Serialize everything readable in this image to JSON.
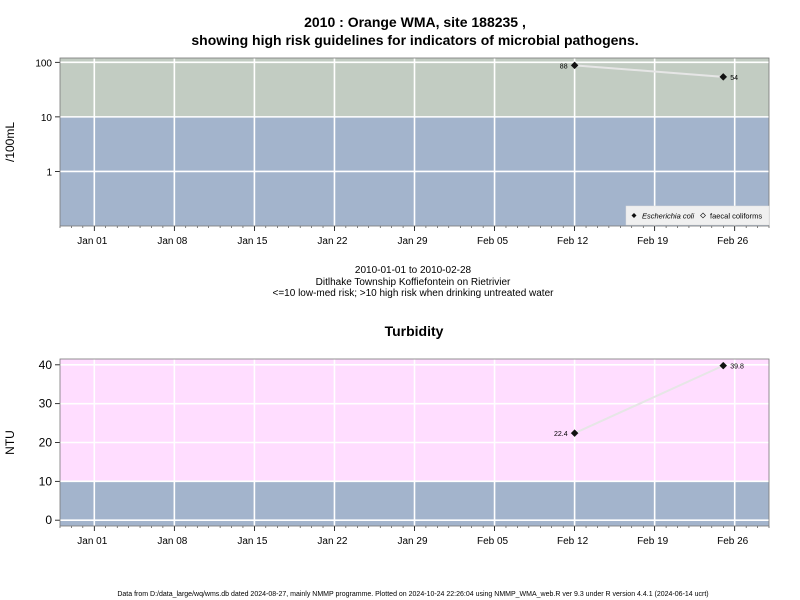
{
  "chart_data": [
    {
      "type": "line",
      "title_line1": "2010 : Orange WMA, site 188235 ,",
      "title_line2": "showing high risk guidelines for indicators of microbial pathogens.",
      "ylabel": "/100mL",
      "y_scale": "log",
      "ylim": [
        0.1,
        120
      ],
      "y_ticks": [
        "100",
        "10",
        "1"
      ],
      "x_ticks": [
        "Jan 01",
        "Jan 08",
        "Jan 15",
        "Jan 22",
        "Jan 29",
        "Feb 05",
        "Feb 12",
        "Feb 19",
        "Feb 26"
      ],
      "xlim": [
        "2009-12-29",
        "2010-03-01"
      ],
      "bands": [
        {
          "from": 0.1,
          "to": 10,
          "color": "#a3b4cc"
        },
        {
          "from": 10,
          "to": 120,
          "color": "#c2ccc2"
        }
      ],
      "series": [
        {
          "name": "Escherichia coli",
          "marker": "filled-diamond",
          "points": [
            {
              "x": "2010-02-12",
              "y": 88,
              "label": "88"
            },
            {
              "x": "2010-02-25",
              "y": 54,
              "label": "54"
            }
          ]
        }
      ],
      "legend": {
        "placement": "bottom-right",
        "entries": [
          "Escherichia coli",
          "faecal coliforms"
        ]
      },
      "subtitle_lines": [
        "2010-01-01 to 2010-02-28",
        "Ditlhake Township Koffiefontein on Rietrivier",
        "<=10 low-med risk; >10 high risk when drinking untreated water"
      ]
    },
    {
      "type": "line",
      "title": "Turbidity",
      "ylabel": "NTU",
      "ylim": [
        -1.5,
        41.5
      ],
      "y_ticks": [
        0,
        10,
        20,
        30,
        40
      ],
      "x_ticks": [
        "Jan 01",
        "Jan 08",
        "Jan 15",
        "Jan 22",
        "Jan 29",
        "Feb 05",
        "Feb 12",
        "Feb 19",
        "Feb 26"
      ],
      "xlim": [
        "2009-12-29",
        "2010-03-01"
      ],
      "bands": [
        {
          "from": -1.5,
          "to": 10,
          "color": "#a3b4cc"
        },
        {
          "from": 10,
          "to": 41.5,
          "color": "#ffddff"
        }
      ],
      "series": [
        {
          "marker": "filled-diamond",
          "points": [
            {
              "x": "2010-02-12",
              "y": 22.4,
              "label": "22.4"
            },
            {
              "x": "2010-02-25",
              "y": 39.8,
              "label": "39.8"
            }
          ]
        }
      ]
    }
  ],
  "footer": "Data from D:/data_large/wq/wms.db dated 2024-08-27, mainly NMMP programme. Plotted on 2024-10-24 22:26:04 using NMMP_WMA_web.R ver 9.3 under R version 4.4.1 (2024-06-14 ucrt)"
}
